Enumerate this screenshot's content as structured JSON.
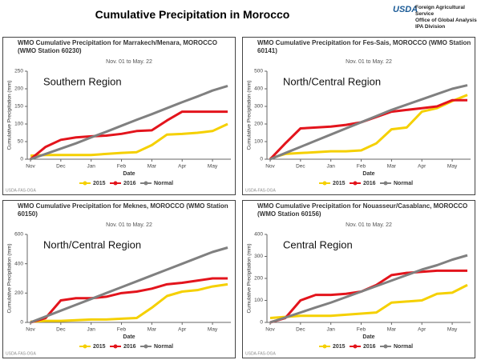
{
  "header": {
    "title": "Cumulative Precipitation in Morocco",
    "logo": "USDA",
    "org_lines": [
      "Foreign Agricultural Service",
      "Office of Global Analysis",
      "IPA Division"
    ]
  },
  "chart_data": [
    {
      "type": "line",
      "title": "WMO Cumulative Precipitation for Marrakech/Menara, MOROCCO (WMO Station 60230)",
      "subtitle": "Nov. 01 to May. 22",
      "annotation": "Southern Region",
      "y_label": "Cumulative Precipitation (mm)",
      "x_label": "Date",
      "source": "USDA-FAS-OGA",
      "categories": [
        "Nov",
        null,
        "Dec",
        null,
        "Jan",
        null,
        "Feb",
        null,
        "Mar",
        null,
        "Apr",
        null,
        "May",
        null
      ],
      "series": [
        {
          "name": "2015",
          "color": "#f5d000",
          "values": [
            10,
            12,
            12,
            12,
            12,
            15,
            18,
            20,
            40,
            70,
            72,
            75,
            80,
            100
          ]
        },
        {
          "name": "2016",
          "color": "#e3141c",
          "values": [
            0,
            35,
            55,
            62,
            65,
            67,
            72,
            80,
            82,
            110,
            135,
            135,
            135,
            135
          ]
        },
        {
          "name": "Normal",
          "color": "#808080",
          "values": [
            0,
            15,
            30,
            45,
            62,
            78,
            95,
            112,
            128,
            145,
            162,
            178,
            195,
            208
          ]
        }
      ],
      "ylim": [
        0,
        250
      ],
      "yticks": [
        0,
        50,
        100,
        150,
        200,
        250
      ]
    },
    {
      "type": "line",
      "title": "WMO Cumulative Precipitation for Fes-Sais, MOROCCO (WMO Station 60141)",
      "subtitle": "Nov. 01 to May. 22",
      "annotation": "North/Central Region",
      "y_label": "Cumulative Precipitation (mm)",
      "x_label": "Date",
      "source": "USDA-FAS-OGA",
      "categories": [
        "Nov",
        null,
        "Dec",
        null,
        "Jan",
        null,
        "Feb",
        null,
        "Mar",
        null,
        "Apr",
        null,
        "May",
        null
      ],
      "series": [
        {
          "name": "2015",
          "color": "#f5d000",
          "values": [
            5,
            30,
            35,
            40,
            45,
            45,
            50,
            90,
            170,
            180,
            270,
            290,
            330,
            365
          ]
        },
        {
          "name": "2016",
          "color": "#e3141c",
          "values": [
            0,
            90,
            175,
            180,
            185,
            195,
            210,
            240,
            270,
            280,
            290,
            300,
            335,
            335
          ]
        },
        {
          "name": "Normal",
          "color": "#808080",
          "values": [
            0,
            35,
            70,
            105,
            140,
            175,
            210,
            245,
            280,
            310,
            340,
            370,
            400,
            420
          ]
        }
      ],
      "ylim": [
        0,
        500
      ],
      "yticks": [
        0,
        100,
        200,
        300,
        400,
        500
      ]
    },
    {
      "type": "line",
      "title": "WMO Cumulative Precipitation for Meknes, MOROCCO (WMO Station 60150)",
      "subtitle": "Nov. 01 to May. 22",
      "annotation": "North/Central Region",
      "y_label": "Cumulative Precipitation (mm)",
      "x_label": "Date",
      "source": "USDA-FAS-OGA",
      "categories": [
        "Nov",
        null,
        "Dec",
        null,
        "Jan",
        null,
        "Feb",
        null,
        "Mar",
        null,
        "Apr",
        null,
        "May",
        null
      ],
      "series": [
        {
          "name": "2015",
          "color": "#f5d000",
          "values": [
            5,
            10,
            10,
            15,
            20,
            20,
            25,
            30,
            100,
            180,
            210,
            220,
            245,
            260
          ]
        },
        {
          "name": "2016",
          "color": "#e3141c",
          "values": [
            0,
            30,
            150,
            165,
            165,
            175,
            200,
            210,
            230,
            260,
            270,
            285,
            300,
            300
          ]
        },
        {
          "name": "Normal",
          "color": "#808080",
          "values": [
            0,
            40,
            80,
            120,
            160,
            200,
            240,
            280,
            320,
            360,
            400,
            440,
            480,
            510
          ]
        }
      ],
      "ylim": [
        0,
        600
      ],
      "yticks": [
        0,
        200,
        400,
        600
      ]
    },
    {
      "type": "line",
      "title": "WMO Cumulative Precipitation for Nouasseur/Casablanc, MOROCCO (WMO Station 60156)",
      "subtitle": "Nov. 01 to May. 22",
      "annotation": "Central Region",
      "y_label": "Cumulative Precipitation (mm)",
      "x_label": "Date",
      "source": "USDA-FAS-OGA",
      "categories": [
        "Nov",
        null,
        "Dec",
        null,
        "Jan",
        null,
        "Feb",
        null,
        "Mar",
        null,
        "Apr",
        null,
        "May",
        null
      ],
      "series": [
        {
          "name": "2015",
          "color": "#f5d000",
          "values": [
            20,
            25,
            30,
            30,
            30,
            35,
            40,
            45,
            90,
            95,
            100,
            130,
            135,
            170
          ]
        },
        {
          "name": "2016",
          "color": "#e3141c",
          "values": [
            0,
            20,
            100,
            125,
            125,
            130,
            140,
            170,
            215,
            225,
            230,
            235,
            235,
            235
          ]
        },
        {
          "name": "Normal",
          "color": "#808080",
          "values": [
            0,
            22,
            45,
            68,
            90,
            115,
            140,
            165,
            190,
            215,
            240,
            260,
            285,
            305
          ]
        }
      ],
      "ylim": [
        0,
        400
      ],
      "yticks": [
        0,
        100,
        200,
        300,
        400
      ]
    }
  ]
}
